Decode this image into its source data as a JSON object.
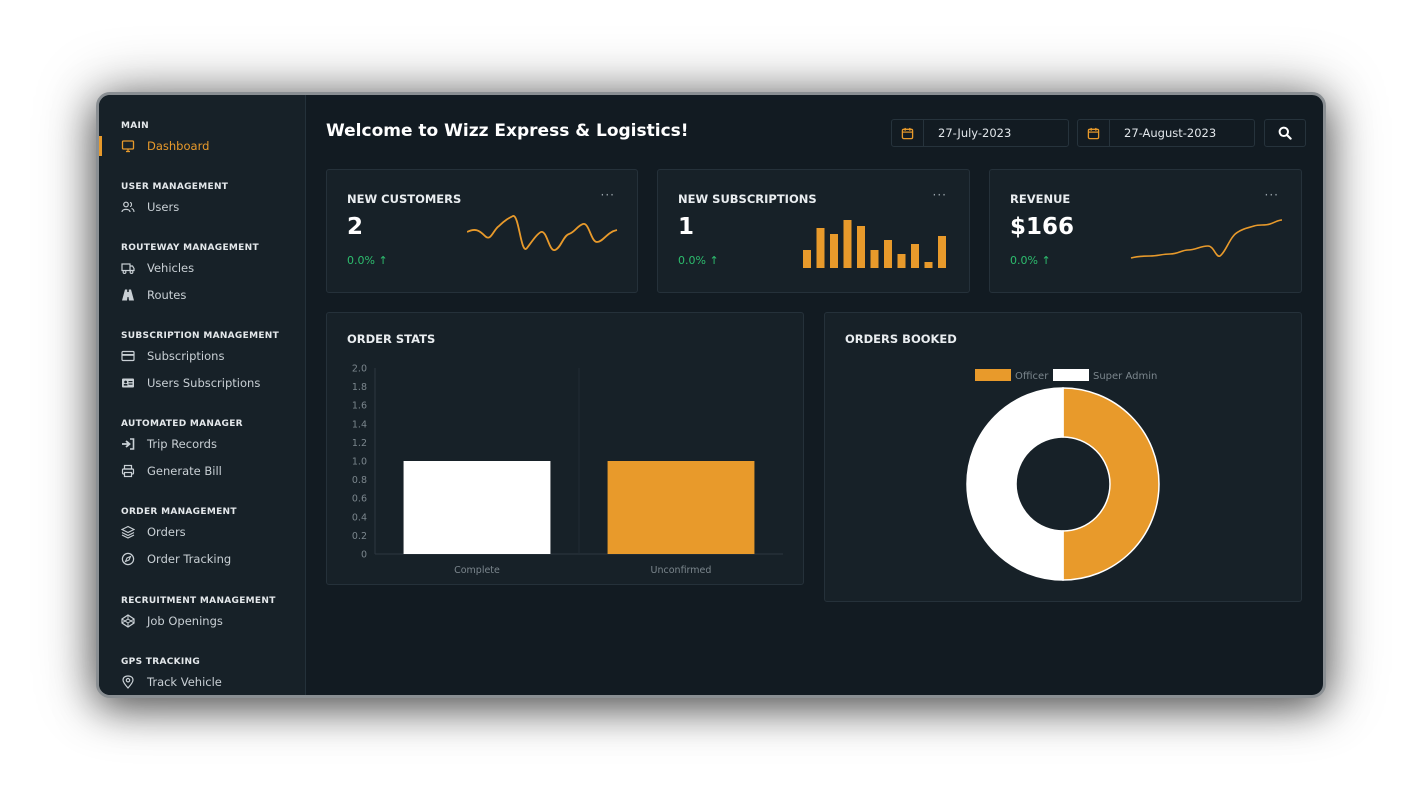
{
  "sidebar": {
    "sections": [
      {
        "title": "MAIN",
        "items": [
          {
            "label": "Dashboard",
            "icon": "monitor-icon",
            "active": true
          }
        ]
      },
      {
        "title": "USER MANAGEMENT",
        "items": [
          {
            "label": "Users",
            "icon": "users-icon"
          }
        ]
      },
      {
        "title": "ROUTEWAY MANAGEMENT",
        "items": [
          {
            "label": "Vehicles",
            "icon": "truck-icon"
          },
          {
            "label": "Routes",
            "icon": "road-icon"
          }
        ]
      },
      {
        "title": "SUBSCRIPTION MANAGEMENT",
        "items": [
          {
            "label": "Subscriptions",
            "icon": "credit-card-icon"
          },
          {
            "label": "Users Subscriptions",
            "icon": "id-card-icon"
          }
        ]
      },
      {
        "title": "AUTOMATED MANAGER",
        "items": [
          {
            "label": "Trip Records",
            "icon": "sign-in-icon"
          },
          {
            "label": "Generate Bill",
            "icon": "printer-icon"
          }
        ]
      },
      {
        "title": "ORDER MANAGEMENT",
        "items": [
          {
            "label": "Orders",
            "icon": "layers-icon"
          },
          {
            "label": "Order Tracking",
            "icon": "compass-icon"
          }
        ]
      },
      {
        "title": "RECRUITMENT MANAGEMENT",
        "items": [
          {
            "label": "Job Openings",
            "icon": "codepen-icon"
          }
        ]
      },
      {
        "title": "GPS TRACKING",
        "items": [
          {
            "label": "Track Vehicle",
            "icon": "map-pin-icon"
          }
        ]
      }
    ]
  },
  "header": {
    "welcome": "Welcome to Wizz Express & Logistics!",
    "start_date": "27-July-2023",
    "end_date": "27-August-2023"
  },
  "stats": [
    {
      "title": "NEW CUSTOMERS",
      "value": "2",
      "change": "0.0% ↑",
      "menu": "···"
    },
    {
      "title": "NEW SUBSCRIPTIONS",
      "value": "1",
      "change": "0.0% ↑",
      "menu": "···"
    },
    {
      "title": "REVENUE",
      "value": "$166",
      "change": "0.0% ↑",
      "menu": "···"
    }
  ],
  "colors": {
    "accent": "#e89a2b",
    "positive": "#2dbd6e",
    "background": "#121b22",
    "panel": "#172128"
  },
  "chart_data": [
    {
      "type": "bar",
      "title": "ORDER STATS",
      "categories": [
        "Complete",
        "Unconfirmed"
      ],
      "values": [
        1,
        1
      ],
      "colors": [
        "#ffffff",
        "#e89a2b"
      ],
      "ylim": [
        0,
        2
      ],
      "yticks": [
        "0",
        "0.2",
        "0.4",
        "0.6",
        "0.8",
        "1.0",
        "1.2",
        "1.4",
        "1.6",
        "1.8",
        "2.0"
      ],
      "grid": true
    },
    {
      "type": "pie",
      "title": "ORDERS BOOKED",
      "labels": [
        "Officer",
        "Super Admin"
      ],
      "values": [
        1,
        1
      ],
      "colors": [
        "#e89a2b",
        "#ffffff"
      ],
      "legend": "top"
    }
  ]
}
